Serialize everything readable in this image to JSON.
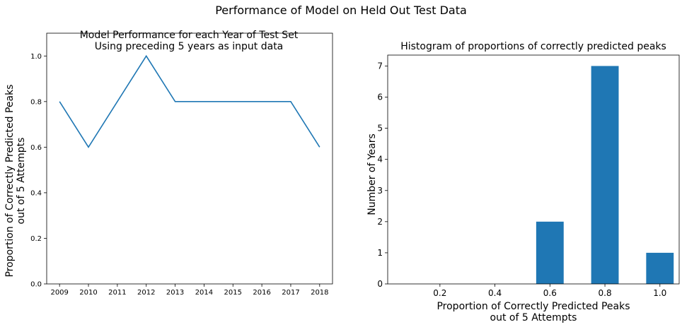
{
  "figure": {
    "title": "Performance of Model on Held Out Test Data"
  },
  "chart_data": [
    {
      "type": "line",
      "title_lines": [
        "Model Performance for each Year of Test Set",
        "Using preceding 5 years as input data"
      ],
      "xlabel": "",
      "ylabel_lines": [
        "Proportion of Correctly Predicted Peaks",
        "out of 5 Attempts"
      ],
      "x": [
        "2009",
        "2010",
        "2011",
        "2012",
        "2013",
        "2014",
        "2015",
        "2016",
        "2017",
        "2018"
      ],
      "values": [
        0.8,
        0.6,
        0.8,
        1.0,
        0.8,
        0.8,
        0.8,
        0.8,
        0.8,
        0.6
      ],
      "ylim": [
        0,
        1.1
      ],
      "yticks": [
        0.0,
        0.2,
        0.4,
        0.6,
        0.8,
        1.0
      ],
      "ytick_labels": [
        "0.0",
        "0.2",
        "0.4",
        "0.6",
        "0.8",
        "1.0"
      ],
      "color": "#1f77b4",
      "grid": false
    },
    {
      "type": "bar",
      "title": "Histogram of proportions of correctly predicted peaks",
      "xlabel_lines": [
        "Proportion of Correctly Predicted Peaks",
        "out of 5 Attempts"
      ],
      "ylabel": "Number of Years",
      "bars": [
        {
          "x": 0.6,
          "value": 2
        },
        {
          "x": 0.8,
          "value": 7
        },
        {
          "x": 1.0,
          "value": 1
        }
      ],
      "bar_width": 0.1,
      "xlim": [
        0.01,
        1.07
      ],
      "xticks": [
        0.2,
        0.4,
        0.6,
        0.8,
        1.0
      ],
      "xtick_labels": [
        "0.2",
        "0.4",
        "0.6",
        "0.8",
        "1.0"
      ],
      "ylim": [
        0,
        7.35
      ],
      "yticks": [
        0,
        1,
        2,
        3,
        4,
        5,
        6,
        7
      ],
      "ytick_labels": [
        "0",
        "1",
        "2",
        "3",
        "4",
        "5",
        "6",
        "7"
      ],
      "color": "#1f77b4",
      "grid": false
    }
  ]
}
